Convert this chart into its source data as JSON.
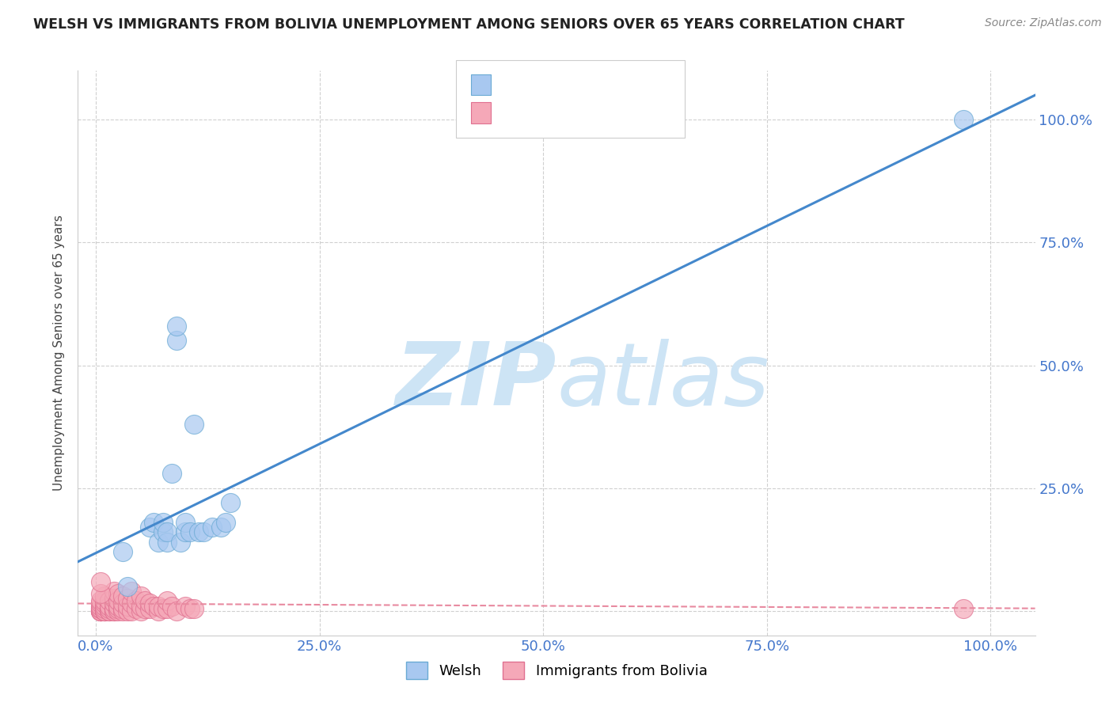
{
  "title": "WELSH VS IMMIGRANTS FROM BOLIVIA UNEMPLOYMENT AMONG SENIORS OVER 65 YEARS CORRELATION CHART",
  "source": "Source: ZipAtlas.com",
  "ylabel": "Unemployment Among Seniors over 65 years",
  "welsh_color": "#a8c8f0",
  "welsh_edge_color": "#6aaad4",
  "bolivia_color": "#f5a8b8",
  "bolivia_edge_color": "#e07090",
  "regression_blue_color": "#4488cc",
  "regression_pink_color": "#e88aa0",
  "watermark_color": "#cde4f5",
  "welsh_x": [
    3.5,
    6.0,
    6.5,
    7.0,
    7.5,
    7.5,
    8.0,
    8.0,
    8.5,
    9.0,
    9.0,
    9.5,
    10.0,
    10.0,
    10.5,
    11.0,
    11.5,
    12.0,
    13.0,
    14.0,
    14.5,
    15.0,
    3.0,
    97.0
  ],
  "welsh_y": [
    5.0,
    17.0,
    18.0,
    14.0,
    16.0,
    18.0,
    14.0,
    16.0,
    28.0,
    55.0,
    58.0,
    14.0,
    16.0,
    18.0,
    16.0,
    38.0,
    16.0,
    16.0,
    17.0,
    17.0,
    18.0,
    22.0,
    12.0,
    100.0
  ],
  "bolivia_x": [
    0.5,
    0.5,
    0.5,
    0.5,
    0.5,
    0.5,
    0.5,
    0.5,
    0.5,
    0.5,
    1.0,
    1.0,
    1.0,
    1.0,
    1.0,
    1.0,
    1.0,
    1.0,
    1.5,
    1.5,
    1.5,
    1.5,
    1.5,
    2.0,
    2.0,
    2.0,
    2.0,
    2.0,
    2.0,
    2.5,
    2.5,
    2.5,
    2.5,
    2.5,
    3.0,
    3.0,
    3.0,
    3.0,
    3.5,
    3.5,
    3.5,
    4.0,
    4.0,
    4.0,
    4.5,
    4.5,
    5.0,
    5.0,
    5.0,
    5.5,
    5.5,
    6.0,
    6.0,
    6.5,
    7.0,
    7.0,
    7.5,
    8.0,
    8.0,
    8.5,
    9.0,
    10.0,
    10.5,
    11.0,
    97.0,
    0.5,
    0.5
  ],
  "bolivia_y": [
    0.0,
    0.0,
    0.0,
    0.0,
    0.0,
    0.5,
    0.5,
    1.0,
    1.5,
    2.0,
    0.0,
    0.0,
    0.0,
    0.5,
    1.0,
    1.5,
    2.0,
    3.0,
    0.0,
    0.0,
    0.5,
    1.0,
    2.0,
    0.0,
    0.0,
    0.5,
    1.5,
    2.5,
    4.0,
    0.0,
    0.5,
    1.0,
    2.0,
    3.5,
    0.0,
    0.5,
    1.5,
    3.0,
    0.0,
    1.0,
    2.5,
    0.0,
    1.5,
    4.0,
    0.5,
    2.0,
    0.0,
    1.0,
    3.0,
    0.5,
    2.0,
    0.5,
    1.5,
    1.0,
    0.0,
    1.0,
    0.5,
    0.5,
    2.0,
    1.0,
    0.0,
    1.0,
    0.5,
    0.5,
    0.5,
    3.5,
    6.0
  ],
  "xlim": [
    -2.0,
    105.0
  ],
  "ylim": [
    -5.0,
    110.0
  ],
  "xticks": [
    0.0,
    25.0,
    50.0,
    75.0,
    100.0
  ],
  "yticks": [
    0.0,
    25.0,
    50.0,
    75.0,
    100.0
  ],
  "xticklabels": [
    "0.0%",
    "25.0%",
    "50.0%",
    "75.0%",
    "100.0%"
  ],
  "yticklabels_right": [
    "",
    "25.0%",
    "50.0%",
    "75.0%",
    "100.0%"
  ],
  "background_color": "#ffffff",
  "grid_color": "#d0d0d0",
  "blue_line_x0": -2.0,
  "blue_line_y0": 10.0,
  "blue_line_x1": 105.0,
  "blue_line_y1": 105.0,
  "pink_line_x0": -2.0,
  "pink_line_y0": 1.5,
  "pink_line_x1": 105.0,
  "pink_line_y1": 0.5
}
